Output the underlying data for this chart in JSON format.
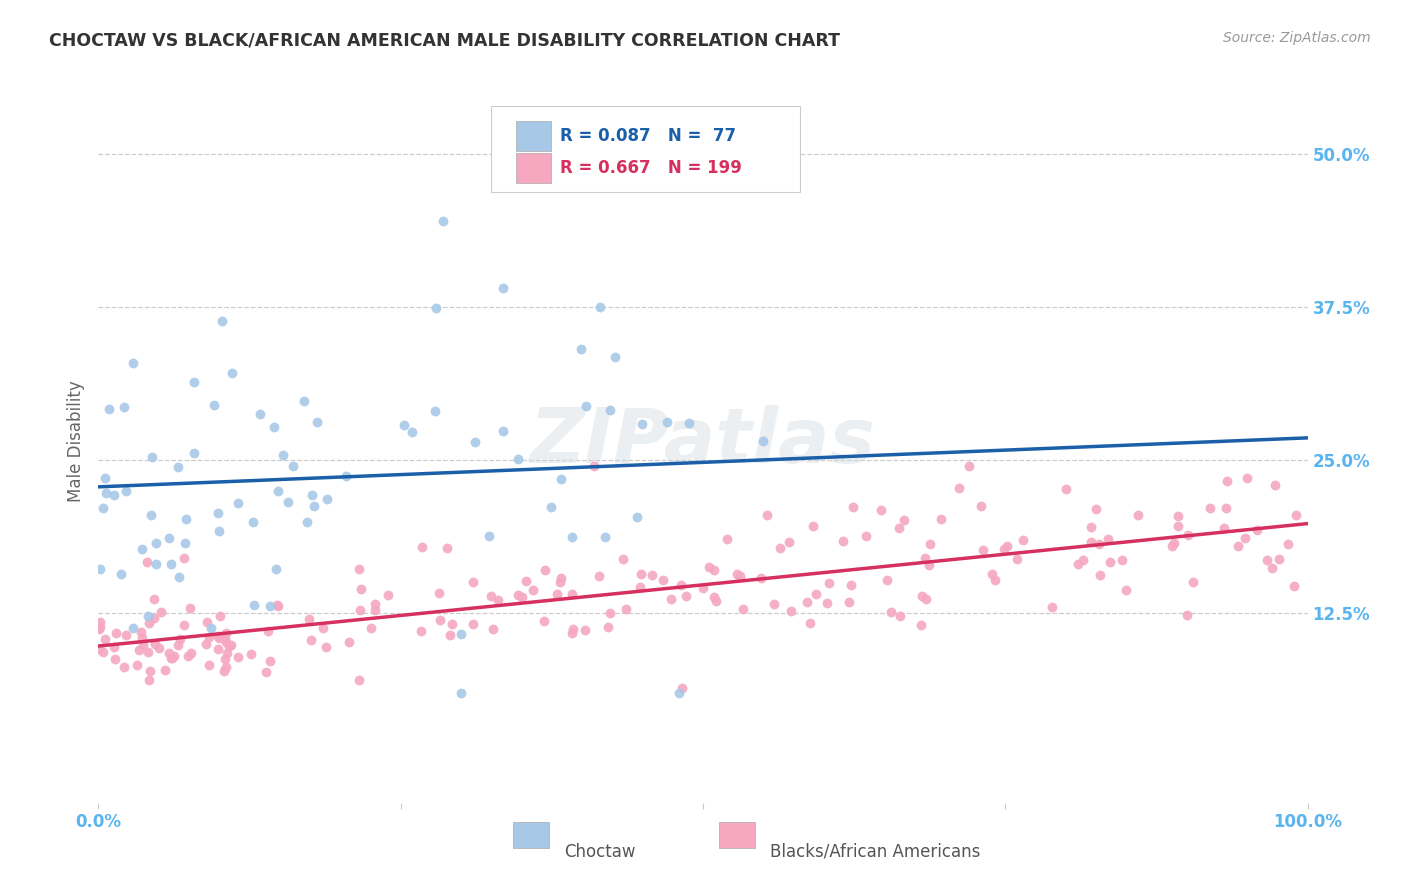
{
  "title": "CHOCTAW VS BLACK/AFRICAN AMERICAN MALE DISABILITY CORRELATION CHART",
  "source": "Source: ZipAtlas.com",
  "ylabel_label": "Male Disability",
  "watermark": "ZIPatlas",
  "background_color": "#ffffff",
  "grid_color": "#cccccc",
  "title_color": "#333333",
  "axis_tick_color": "#5ab4f0",
  "choctaw_scatter_color": "#a8c8e8",
  "choctaw_line_color": "#1a5fa8",
  "black_scatter_color": "#f5a8bf",
  "black_line_color": "#d63060",
  "choctaw_R": 0.087,
  "choctaw_N": 77,
  "black_R": 0.667,
  "black_N": 199,
  "xlim": [
    0.0,
    1.0
  ],
  "ylim": [
    -0.03,
    0.56
  ],
  "yticks": [
    0.125,
    0.25,
    0.375,
    0.5
  ],
  "ytick_labels": [
    "12.5%",
    "25.0%",
    "37.5%",
    "50.0%"
  ],
  "xtick_labels": [
    "0.0%",
    "100.0%"
  ],
  "choctaw_trend_start": 0.228,
  "choctaw_trend_end": 0.268,
  "black_trend_start": 0.098,
  "black_trend_end": 0.198
}
